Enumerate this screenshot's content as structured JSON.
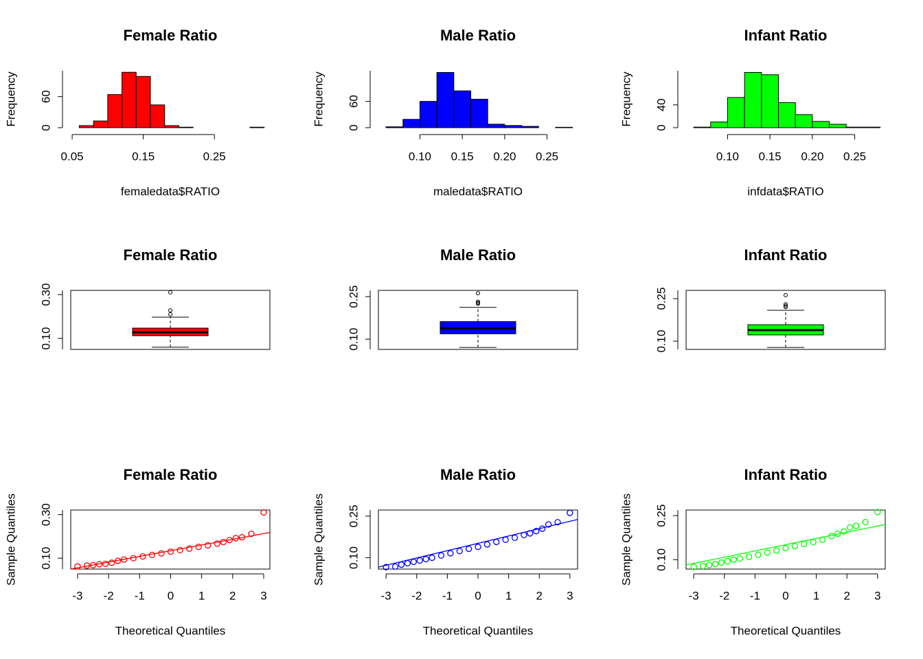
{
  "chart_data": [
    {
      "type": "histogram",
      "title": "Female Ratio",
      "xlabel": "femaledata$RATIO",
      "ylabel": "Frequency",
      "color": "#ff0000",
      "bins": [
        0.06,
        0.08,
        0.1,
        0.12,
        0.14,
        0.16,
        0.18,
        0.2,
        0.22,
        0.24,
        0.26,
        0.28,
        0.3,
        0.32
      ],
      "values": [
        4,
        13,
        64,
        107,
        99,
        44,
        4,
        1,
        0,
        0,
        0,
        0,
        1
      ],
      "xlim": [
        0.048,
        0.328
      ],
      "xticks": [
        0.05,
        0.15,
        0.25
      ],
      "ylim": [
        0,
        110
      ],
      "yticks": [
        0,
        60
      ]
    },
    {
      "type": "histogram",
      "title": "Male Ratio",
      "xlabel": "maledata$RATIO",
      "ylabel": "Frequency",
      "color": "#0000ff",
      "bins": [
        0.06,
        0.08,
        0.1,
        0.12,
        0.14,
        0.16,
        0.18,
        0.2,
        0.22,
        0.24,
        0.26,
        0.28
      ],
      "values": [
        2,
        19,
        60,
        126,
        84,
        65,
        8,
        5,
        3,
        0,
        1
      ],
      "xlim": [
        0.051,
        0.286
      ],
      "xticks": [
        {
          "value": 0.1,
          "label": "0.10"
        },
        0.15,
        {
          "value": 0.2,
          "label": "0.20"
        },
        0.25
      ],
      "ylim": [
        0,
        130
      ],
      "yticks": [
        0,
        60
      ]
    },
    {
      "type": "histogram",
      "title": "Infant Ratio",
      "xlabel": "infdata$RATIO",
      "ylabel": "Frequency",
      "color": "#00ff00",
      "bins": [
        0.06,
        0.08,
        0.1,
        0.12,
        0.14,
        0.16,
        0.18,
        0.2,
        0.22,
        0.24,
        0.26,
        0.28
      ],
      "values": [
        1,
        10,
        53,
        97,
        93,
        44,
        23,
        11,
        6,
        1,
        1
      ],
      "xlim": [
        0.051,
        0.286
      ],
      "xticks": [
        {
          "value": 0.1,
          "label": "0.10"
        },
        0.15,
        {
          "value": 0.2,
          "label": "0.20"
        },
        0.25
      ],
      "ylim": [
        0,
        100
      ],
      "yticks": [
        0,
        40
      ]
    },
    {
      "type": "boxplot",
      "title": "Female Ratio",
      "color": "#ff0000",
      "box": {
        "whisker_low": 0.06,
        "q1": 0.1125,
        "median": 0.128,
        "q3": 0.147,
        "whisker_high": 0.197,
        "outliers": [
          0.21,
          0.228,
          0.31
        ]
      },
      "ylim": [
        0.05,
        0.319
      ],
      "yticks": [
        {
          "value": 0.1,
          "label": "0.10"
        },
        {
          "value": 0.3,
          "label": "0.30"
        }
      ]
    },
    {
      "type": "boxplot",
      "title": "Male Ratio",
      "color": "#0000ff",
      "box": {
        "whisker_low": 0.071,
        "q1": 0.119,
        "median": 0.138,
        "q3": 0.162,
        "whisker_high": 0.212,
        "outliers": [
          0.225,
          0.228,
          0.232,
          0.262
        ]
      },
      "ylim": [
        0.064,
        0.272
      ],
      "yticks": [
        {
          "value": 0.1,
          "label": "0.10"
        },
        0.25
      ]
    },
    {
      "type": "boxplot",
      "title": "Infant Ratio",
      "color": "#00ff00",
      "box": {
        "whisker_low": 0.078,
        "q1": 0.122,
        "median": 0.139,
        "q3": 0.158,
        "whisker_high": 0.209,
        "outliers": [
          0.22,
          0.225,
          0.23,
          0.262
        ]
      },
      "ylim": [
        0.071,
        0.279
      ],
      "yticks": [
        {
          "value": 0.1,
          "label": "0.10"
        },
        0.25
      ]
    },
    {
      "type": "qq",
      "title": "Female Ratio",
      "xlabel": "Theoretical Quantiles",
      "ylabel": "Sample Quantiles",
      "color": "#ff0000",
      "x": [
        -3,
        -2.7,
        -2.5,
        -2.3,
        -2.1,
        -1.9,
        -1.7,
        -1.5,
        -1.2,
        -0.9,
        -0.6,
        -0.3,
        0,
        0.3,
        0.6,
        0.9,
        1.2,
        1.5,
        1.7,
        1.9,
        2.1,
        2.3,
        2.6,
        3.0
      ],
      "values": [
        0.062,
        0.066,
        0.068,
        0.072,
        0.074,
        0.079,
        0.088,
        0.094,
        0.1,
        0.108,
        0.115,
        0.122,
        0.13,
        0.137,
        0.144,
        0.152,
        0.159,
        0.167,
        0.174,
        0.183,
        0.192,
        0.196,
        0.212,
        0.31
      ],
      "line": {
        "x": [
          -3.22,
          3.2
        ],
        "values": [
          0.05,
          0.218
        ]
      },
      "xlim": [
        -3.22,
        3.2
      ],
      "xticks": [
        -3,
        -2,
        -1,
        0,
        1,
        2,
        3
      ],
      "ylim": [
        0.05,
        0.321
      ],
      "yticks": [
        {
          "value": 0.1,
          "label": "0.10"
        },
        {
          "value": 0.3,
          "label": "0.30"
        }
      ]
    },
    {
      "type": "qq",
      "title": "Male Ratio",
      "xlabel": "Theoretical Quantiles",
      "ylabel": "Sample Quantiles",
      "color": "#0000ff",
      "x": [
        -3,
        -2.7,
        -2.5,
        -2.3,
        -2.1,
        -1.9,
        -1.7,
        -1.5,
        -1.2,
        -0.9,
        -0.6,
        -0.3,
        0,
        0.3,
        0.6,
        0.9,
        1.2,
        1.5,
        1.7,
        1.9,
        2.1,
        2.3,
        2.6,
        3.0
      ],
      "values": [
        0.066,
        0.068,
        0.075,
        0.08,
        0.085,
        0.09,
        0.095,
        0.1,
        0.108,
        0.116,
        0.124,
        0.132,
        0.139,
        0.148,
        0.157,
        0.165,
        0.172,
        0.182,
        0.188,
        0.196,
        0.205,
        0.22,
        0.228,
        0.262
      ],
      "line": {
        "x": [
          -3.25,
          3.25
        ],
        "values": [
          0.066,
          0.238
        ]
      },
      "xlim": [
        -3.25,
        3.25
      ],
      "xticks": [
        -3,
        -2,
        -1,
        0,
        1,
        2,
        3
      ],
      "ylim": [
        0.059,
        0.272
      ],
      "yticks": [
        {
          "value": 0.1,
          "label": "0.10"
        },
        0.25
      ]
    },
    {
      "type": "qq",
      "title": "Infant Ratio",
      "xlabel": "Theoretical Quantiles",
      "ylabel": "Sample Quantiles",
      "color": "#00ff00",
      "x": [
        -3,
        -2.7,
        -2.5,
        -2.3,
        -2.1,
        -1.9,
        -1.7,
        -1.5,
        -1.2,
        -0.9,
        -0.6,
        -0.3,
        0,
        0.3,
        0.6,
        0.9,
        1.2,
        1.5,
        1.7,
        1.9,
        2.1,
        2.3,
        2.6,
        3.0
      ],
      "values": [
        0.075,
        0.078,
        0.082,
        0.085,
        0.09,
        0.095,
        0.1,
        0.104,
        0.11,
        0.117,
        0.124,
        0.131,
        0.139,
        0.146,
        0.153,
        0.16,
        0.168,
        0.18,
        0.188,
        0.196,
        0.21,
        0.215,
        0.228,
        0.262
      ],
      "line": {
        "x": [
          -3.25,
          3.25
        ],
        "values": [
          0.082,
          0.22
        ]
      },
      "xlim": [
        -3.25,
        3.25
      ],
      "xticks": [
        -3,
        -2,
        -1,
        0,
        1,
        2,
        3
      ],
      "ylim": [
        0.068,
        0.269
      ],
      "yticks": [
        {
          "value": 0.1,
          "label": "0.10"
        },
        0.25
      ]
    }
  ]
}
